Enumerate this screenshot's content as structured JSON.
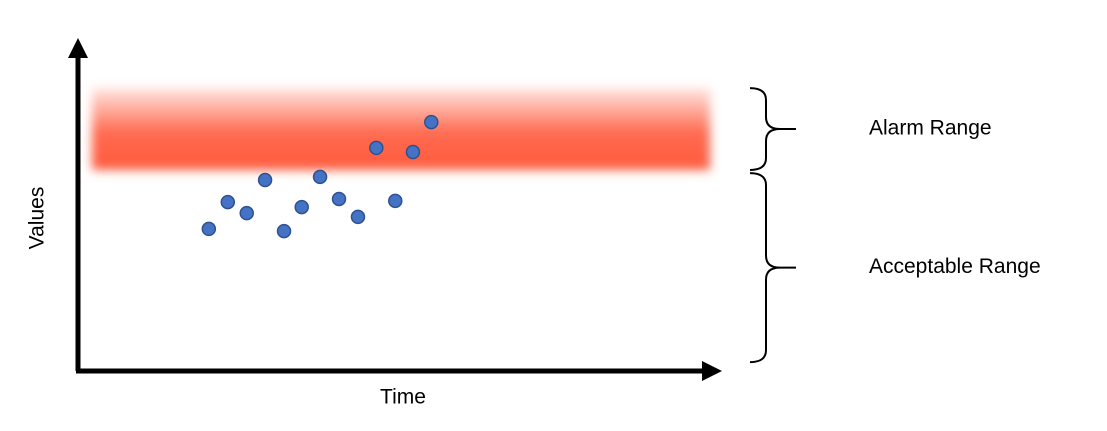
{
  "chart_data": {
    "type": "scatter",
    "xlabel": "Time",
    "ylabel": "Values",
    "xlim": [
      0,
      100
    ],
    "ylim": [
      0,
      100
    ],
    "color": "#4472c4",
    "x": [
      20.7,
      23.7,
      26.7,
      29.6,
      32.6,
      35.4,
      38.3,
      41.3,
      44.3,
      47.2,
      50.2,
      53.0,
      55.9
    ],
    "y": [
      44.8,
      53.3,
      49.8,
      60.3,
      44.1,
      51.7,
      61.3,
      54.3,
      48.6,
      70.5,
      53.7,
      69.2,
      78.7
    ],
    "ranges": [
      {
        "label": "Alarm Range",
        "from": 63.5,
        "to": 89.5,
        "color": "#ff5a3c"
      },
      {
        "label": "Acceptable Range",
        "from": 2.5,
        "to": 62.5
      }
    ]
  }
}
